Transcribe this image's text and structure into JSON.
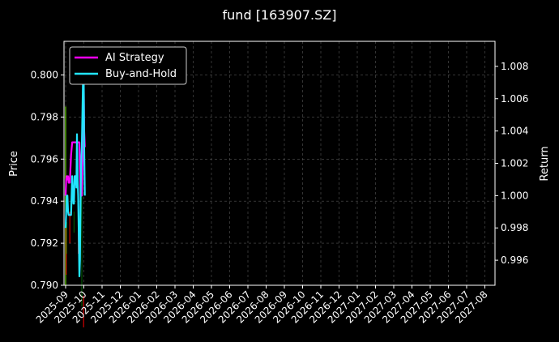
{
  "chart_data": {
    "type": "line",
    "title": "fund [163907.SZ]",
    "ylabel": "Price",
    "y2label": "Return",
    "ylim": [
      0.79,
      0.8016
    ],
    "y2lim": [
      0.99445,
      1.00955
    ],
    "yticks": [
      "0.790",
      "0.792",
      "0.794",
      "0.796",
      "0.798",
      "0.800"
    ],
    "y2ticks": [
      "0.996",
      "0.998",
      "1.000",
      "1.002",
      "1.004",
      "1.006",
      "1.008"
    ],
    "xticks": [
      "2025-09",
      "2025-10",
      "2025-11",
      "2025-12",
      "2026-01",
      "2026-02",
      "2026-03",
      "2026-04",
      "2026-05",
      "2026-06",
      "2026-07",
      "2026-08",
      "2026-09",
      "2026-10",
      "2026-11",
      "2026-12",
      "2027-01",
      "2027-02",
      "2027-03",
      "2027-04",
      "2027-05",
      "2027-06",
      "2027-07",
      "2027-08"
    ],
    "grid": true,
    "legend_position": "top-left",
    "background": "#000000",
    "price_candles": {
      "dates": [
        "2025-09-01",
        "2025-09-02",
        "2025-09-03",
        "2025-09-08",
        "2025-09-15",
        "2025-09-22",
        "2025-09-28",
        "2025-10-01"
      ],
      "high": [
        0.7985,
        0.7935,
        0.793,
        0.7935,
        0.7935,
        0.794,
        0.795,
        0.7895
      ],
      "low": [
        0.79,
        0.7905,
        0.7915,
        0.792,
        0.7925,
        0.7915,
        0.789,
        0.788
      ],
      "up_color": "#7fff00",
      "down_color": "#ff0000"
    },
    "series": [
      {
        "name": "AI Strategy",
        "color": "#ff00ff",
        "axis": "right",
        "x": [
          "2025-09-01",
          "2025-09-02",
          "2025-09-03",
          "2025-09-04",
          "2025-09-05",
          "2025-09-06",
          "2025-09-08",
          "2025-09-10",
          "2025-09-12",
          "2025-09-14",
          "2025-09-16",
          "2025-09-18",
          "2025-09-20",
          "2025-09-22",
          "2025-09-24",
          "2025-09-26",
          "2025-09-28",
          "2025-09-30",
          "2025-10-01",
          "2025-10-02",
          "2025-10-03"
        ],
        "values": [
          1.0,
          1.001,
          1.0012,
          1.001,
          1.0012,
          1.0008,
          1.0008,
          1.0025,
          1.0033,
          1.0033,
          1.0033,
          1.0033,
          1.0033,
          1.0033,
          1.0033,
          1.0,
          1.0,
          1.0033,
          1.008,
          1.004,
          1.003
        ]
      },
      {
        "name": "Buy-and-Hold",
        "color": "#22e5ff",
        "axis": "right",
        "x": [
          "2025-09-01",
          "2025-09-02",
          "2025-09-03",
          "2025-09-04",
          "2025-09-05",
          "2025-09-06",
          "2025-09-08",
          "2025-09-10",
          "2025-09-12",
          "2025-09-14",
          "2025-09-15",
          "2025-09-16",
          "2025-09-18",
          "2025-09-19",
          "2025-09-20",
          "2025-09-21",
          "2025-09-22",
          "2025-09-24",
          "2025-09-25",
          "2025-09-26",
          "2025-09-27",
          "2025-09-28",
          "2025-09-30",
          "2025-10-01",
          "2025-10-02",
          "2025-10-03"
        ],
        "values": [
          0.998,
          0.999,
          1.0,
          1.0,
          0.999,
          0.9988,
          0.9988,
          0.9988,
          1.0012,
          0.9995,
          0.9995,
          1.0012,
          1.0012,
          1.0005,
          1.0038,
          1.001,
          1.0,
          0.995,
          0.996,
          1.0,
          1.002,
          1.003,
          1.007,
          1.008,
          1.003,
          1.0
        ]
      }
    ]
  }
}
